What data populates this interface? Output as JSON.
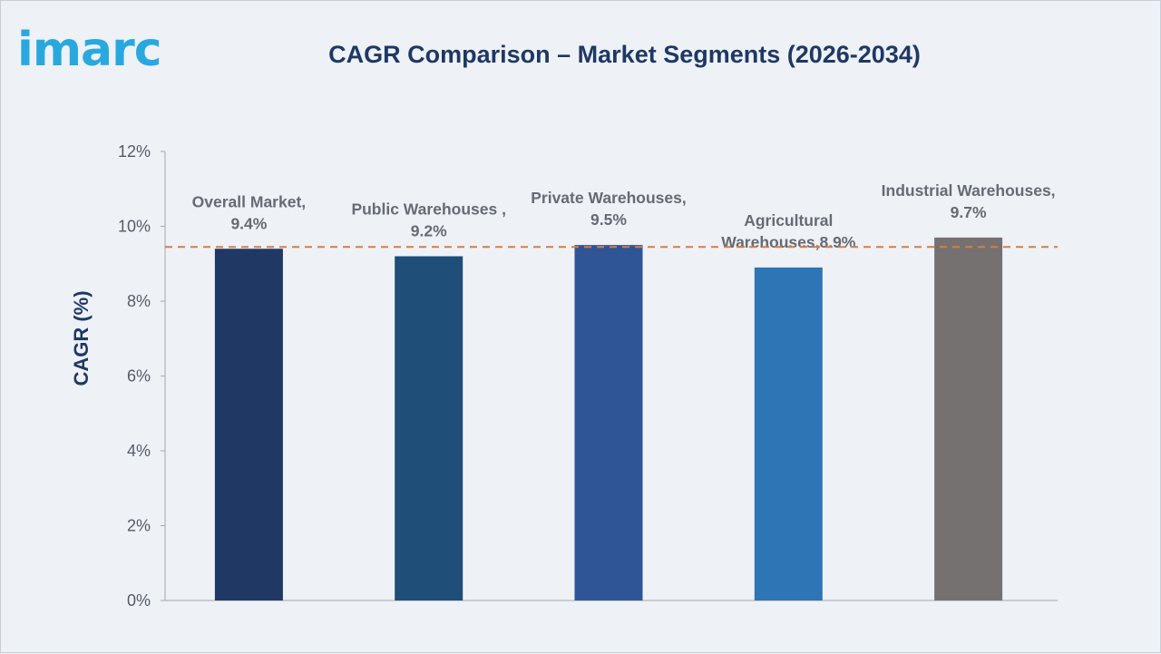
{
  "logo": {
    "text": "imarc"
  },
  "title": "CAGR Comparison – Market Segments (2026-2034)",
  "chart_data": {
    "type": "bar",
    "title": "CAGR Comparison – Market Segments (2026-2034)",
    "ylabel": "CAGR (%)",
    "xlabel": "",
    "ylim": [
      0,
      12
    ],
    "y_ticks": [
      "0%",
      "2%",
      "4%",
      "6%",
      "8%",
      "10%",
      "12%"
    ],
    "grid": false,
    "categories": [
      "Overall Market",
      "Public Warehouses",
      "Private Warehouses",
      "Agricultural Warehouses",
      "Industrial Warehouses"
    ],
    "values": [
      9.4,
      9.2,
      9.5,
      8.9,
      9.7
    ],
    "data_labels": [
      [
        "Overall Market,",
        "9.4%"
      ],
      [
        "Public Warehouses ,",
        "9.2%"
      ],
      [
        "Private Warehouses,",
        "9.5%"
      ],
      [
        "Agricultural",
        "Warehouses,8.9%"
      ],
      [
        "Industrial Warehouses,",
        "9.7%"
      ]
    ],
    "bar_colors": [
      "#203864",
      "#1f4e79",
      "#2f5597",
      "#2e75b6",
      "#767171"
    ],
    "reference_line": {
      "value": 9.45,
      "style": "dashed",
      "color": "#e07b39"
    }
  }
}
